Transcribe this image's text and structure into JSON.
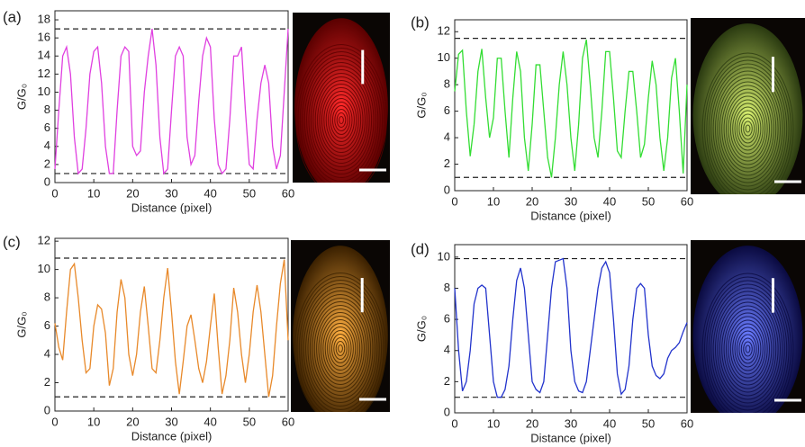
{
  "chart_data": [
    {
      "type": "line",
      "panel": "(a)",
      "xlabel": "Distance (pixel)",
      "ylabel": "G/G₀",
      "x": [
        0,
        1,
        2,
        3,
        4,
        5,
        6,
        7,
        8,
        9,
        10,
        11,
        12,
        13,
        14,
        15,
        16,
        17,
        18,
        19,
        20,
        21,
        22,
        23,
        24,
        25,
        26,
        27,
        28,
        29,
        30,
        31,
        32,
        33,
        34,
        35,
        36,
        37,
        38,
        39,
        40,
        41,
        42,
        43,
        44,
        45,
        46,
        47,
        48,
        49,
        50,
        51,
        52,
        53,
        54,
        55,
        56,
        57,
        58,
        59,
        60
      ],
      "series": [
        {
          "color": "#e040e0",
          "values": [
            1.5,
            8,
            14,
            15,
            12,
            5,
            1,
            1.5,
            6,
            12,
            14.5,
            15,
            11,
            4,
            1,
            1,
            8,
            14,
            15,
            14.5,
            4,
            3,
            3.5,
            10,
            14,
            17,
            13,
            5,
            1,
            1.5,
            8,
            14,
            15,
            14,
            5,
            2,
            3,
            9,
            14,
            16,
            15,
            7,
            2,
            1,
            1.5,
            7,
            14,
            14,
            15,
            8,
            2,
            1.5,
            7,
            11,
            13,
            11,
            4,
            1.5,
            3,
            10,
            17
          ]
        }
      ],
      "hlines": [
        17,
        1
      ],
      "xlim": [
        0,
        60
      ],
      "ylim": [
        0,
        19
      ],
      "xticks": [
        0,
        10,
        20,
        30,
        40,
        50,
        60
      ],
      "yticks": [
        0,
        2,
        4,
        6,
        8,
        10,
        12,
        14,
        16,
        18
      ]
    },
    {
      "type": "line",
      "panel": "(b)",
      "xlabel": "Distance (pixel)",
      "ylabel": "G/G₀",
      "x": [
        0,
        1,
        2,
        3,
        4,
        5,
        6,
        7,
        8,
        9,
        10,
        11,
        12,
        13,
        14,
        15,
        16,
        17,
        18,
        19,
        20,
        21,
        22,
        23,
        24,
        25,
        26,
        27,
        28,
        29,
        30,
        31,
        32,
        33,
        34,
        35,
        36,
        37,
        38,
        39,
        40,
        41,
        42,
        43,
        44,
        45,
        46,
        47,
        48,
        49,
        50,
        51,
        52,
        53,
        54,
        55,
        56,
        57,
        58,
        59,
        60
      ],
      "series": [
        {
          "color": "#33dd33",
          "values": [
            7.5,
            10.3,
            10.6,
            6,
            2.6,
            5,
            9,
            10.7,
            7,
            4,
            5.5,
            10,
            10,
            6,
            2.5,
            7,
            10.5,
            9,
            4,
            1.5,
            5,
            9.5,
            9.5,
            6,
            2.5,
            1,
            4,
            8,
            10.5,
            8,
            4,
            1.5,
            5,
            10,
            11.4,
            8,
            4,
            2.5,
            6,
            10.5,
            10.5,
            7,
            3,
            2.5,
            6,
            9,
            9,
            6,
            2.5,
            3.5,
            7,
            9.8,
            8,
            4,
            1.5,
            4,
            8.5,
            10,
            6,
            1.3,
            8
          ]
        }
      ],
      "hlines": [
        11.5,
        1
      ],
      "xlim": [
        0,
        60
      ],
      "ylim": [
        0,
        12.9
      ],
      "xticks": [
        0,
        10,
        20,
        30,
        40,
        50,
        60
      ],
      "yticks": [
        0,
        2,
        4,
        6,
        8,
        10,
        12
      ]
    },
    {
      "type": "line",
      "panel": "(c)",
      "xlabel": "Distance (pixel)",
      "ylabel": "G/G₀",
      "x": [
        0,
        1,
        2,
        3,
        4,
        5,
        6,
        7,
        8,
        9,
        10,
        11,
        12,
        13,
        14,
        15,
        16,
        17,
        18,
        19,
        20,
        21,
        22,
        23,
        24,
        25,
        26,
        27,
        28,
        29,
        30,
        31,
        32,
        33,
        34,
        35,
        36,
        37,
        38,
        39,
        40,
        41,
        42,
        43,
        44,
        45,
        46,
        47,
        48,
        49,
        50,
        51,
        52,
        53,
        54,
        55,
        56,
        57,
        58,
        59,
        60
      ],
      "series": [
        {
          "color": "#e8892a",
          "values": [
            6.2,
            4.5,
            3.6,
            7,
            10,
            10.4,
            8,
            5,
            2.7,
            3,
            6,
            7.5,
            7.2,
            5.5,
            1.8,
            3,
            7,
            9.3,
            8,
            4,
            2.5,
            4,
            7,
            8.8,
            6,
            3,
            2.7,
            5,
            8,
            10.1,
            7,
            3.5,
            1.2,
            3.5,
            6,
            6.8,
            5,
            3,
            2,
            3.5,
            6,
            8.3,
            4.5,
            1.2,
            2.5,
            5,
            8.7,
            7,
            4,
            2,
            4,
            7,
            8.9,
            7,
            4,
            1,
            2.5,
            6,
            9,
            10.7,
            5
          ]
        }
      ],
      "hlines": [
        10.8,
        1
      ],
      "xlim": [
        0,
        60
      ],
      "ylim": [
        0,
        12.2
      ],
      "xticks": [
        0,
        10,
        20,
        30,
        40,
        50,
        60
      ],
      "yticks": [
        0,
        2,
        4,
        6,
        8,
        10,
        12
      ]
    },
    {
      "type": "line",
      "panel": "(d)",
      "xlabel": "Distance (pixel)",
      "ylabel": "G/G₀",
      "x": [
        0,
        1,
        2,
        3,
        4,
        5,
        6,
        7,
        8,
        9,
        10,
        11,
        12,
        13,
        14,
        15,
        16,
        17,
        18,
        19,
        20,
        21,
        22,
        23,
        24,
        25,
        26,
        27,
        28,
        29,
        30,
        31,
        32,
        33,
        34,
        35,
        36,
        37,
        38,
        39,
        40,
        41,
        42,
        43,
        44,
        45,
        46,
        47,
        48,
        49,
        50,
        51,
        52,
        53,
        54,
        55,
        56,
        57,
        58,
        59,
        60
      ],
      "series": [
        {
          "color": "#2233cc",
          "values": [
            8,
            4,
            1.4,
            2,
            4,
            7,
            8,
            8.2,
            8,
            5,
            2,
            1,
            1,
            1.5,
            3,
            6,
            8.5,
            9.3,
            8,
            5,
            2,
            1.5,
            1.3,
            2,
            5,
            8,
            9.7,
            9.8,
            9.9,
            8,
            4,
            2,
            1.4,
            1.3,
            2,
            4,
            6,
            8,
            9.3,
            9.7,
            9,
            6,
            2.5,
            1.2,
            1.5,
            3,
            6,
            8,
            8.3,
            8,
            5,
            3,
            2.4,
            2.2,
            2.5,
            3.5,
            4,
            4.2,
            4.5,
            5.2,
            5.8
          ]
        }
      ],
      "hlines": [
        9.9,
        1
      ],
      "xlim": [
        0,
        60
      ],
      "ylim": [
        0,
        10.8
      ],
      "xticks": [
        0,
        10,
        20,
        30,
        40,
        50,
        60
      ],
      "yticks": [
        0,
        2,
        4,
        6,
        8,
        10
      ]
    }
  ]
}
